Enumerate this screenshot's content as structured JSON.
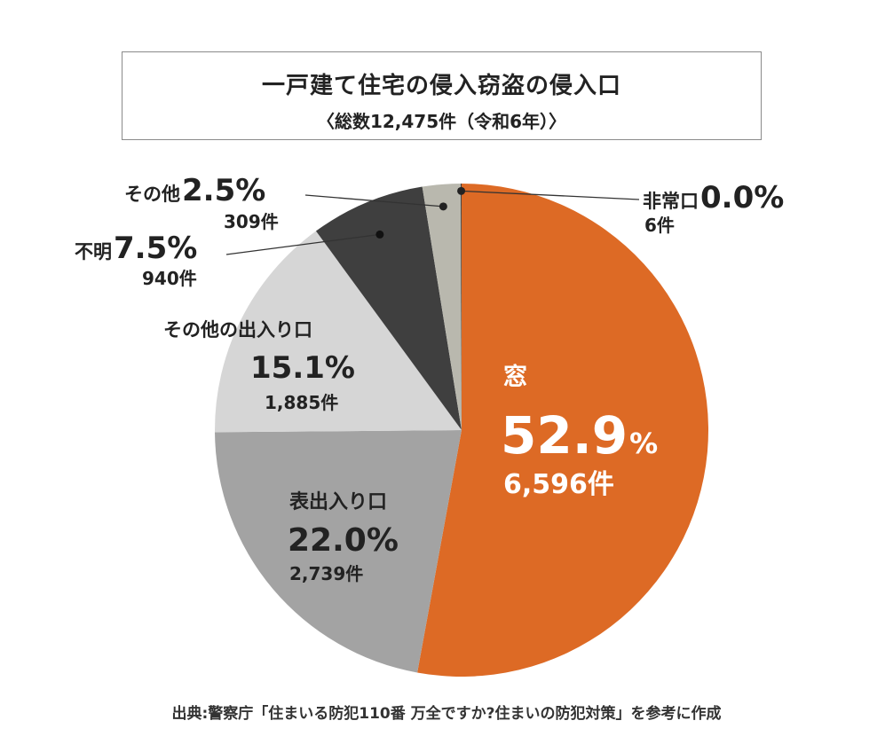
{
  "title": {
    "main": "一戸建て住宅の侵入窃盗の侵入口",
    "sub": "〈総数12,475件（令和6年）〉"
  },
  "chart_data": {
    "type": "pie",
    "title": "一戸建て住宅の侵入窃盗の侵入口",
    "total": "総数12,475件（令和6年）",
    "slices": [
      {
        "name": "窓",
        "percent": 52.9,
        "percent_label": "52.9",
        "count_label": "6,596件",
        "color": "#dd6a25"
      },
      {
        "name": "表出入り口",
        "percent": 22.0,
        "percent_label": "22.0%",
        "count_label": "2,739件",
        "color": "#a3a3a3"
      },
      {
        "name": "その他の出入り口",
        "percent": 15.1,
        "percent_label": "15.1%",
        "count_label": "1,885件",
        "color": "#d6d6d6"
      },
      {
        "name": "不明",
        "percent": 7.5,
        "percent_label": "7.5%",
        "count_label": "940件",
        "color": "#3f3f3f"
      },
      {
        "name": "その他",
        "percent": 2.5,
        "percent_label": "2.5%",
        "count_label": "309件",
        "color": "#b9b8ae"
      },
      {
        "name": "非常口",
        "percent": 0.05,
        "percent_label": "0.0%",
        "count_label": "6件",
        "color": "#222222"
      }
    ],
    "percent_sign": "%"
  },
  "source": "出典:警察庁「住まいる防犯110番 万全ですか?住まいの防犯対策」を参考に作成"
}
